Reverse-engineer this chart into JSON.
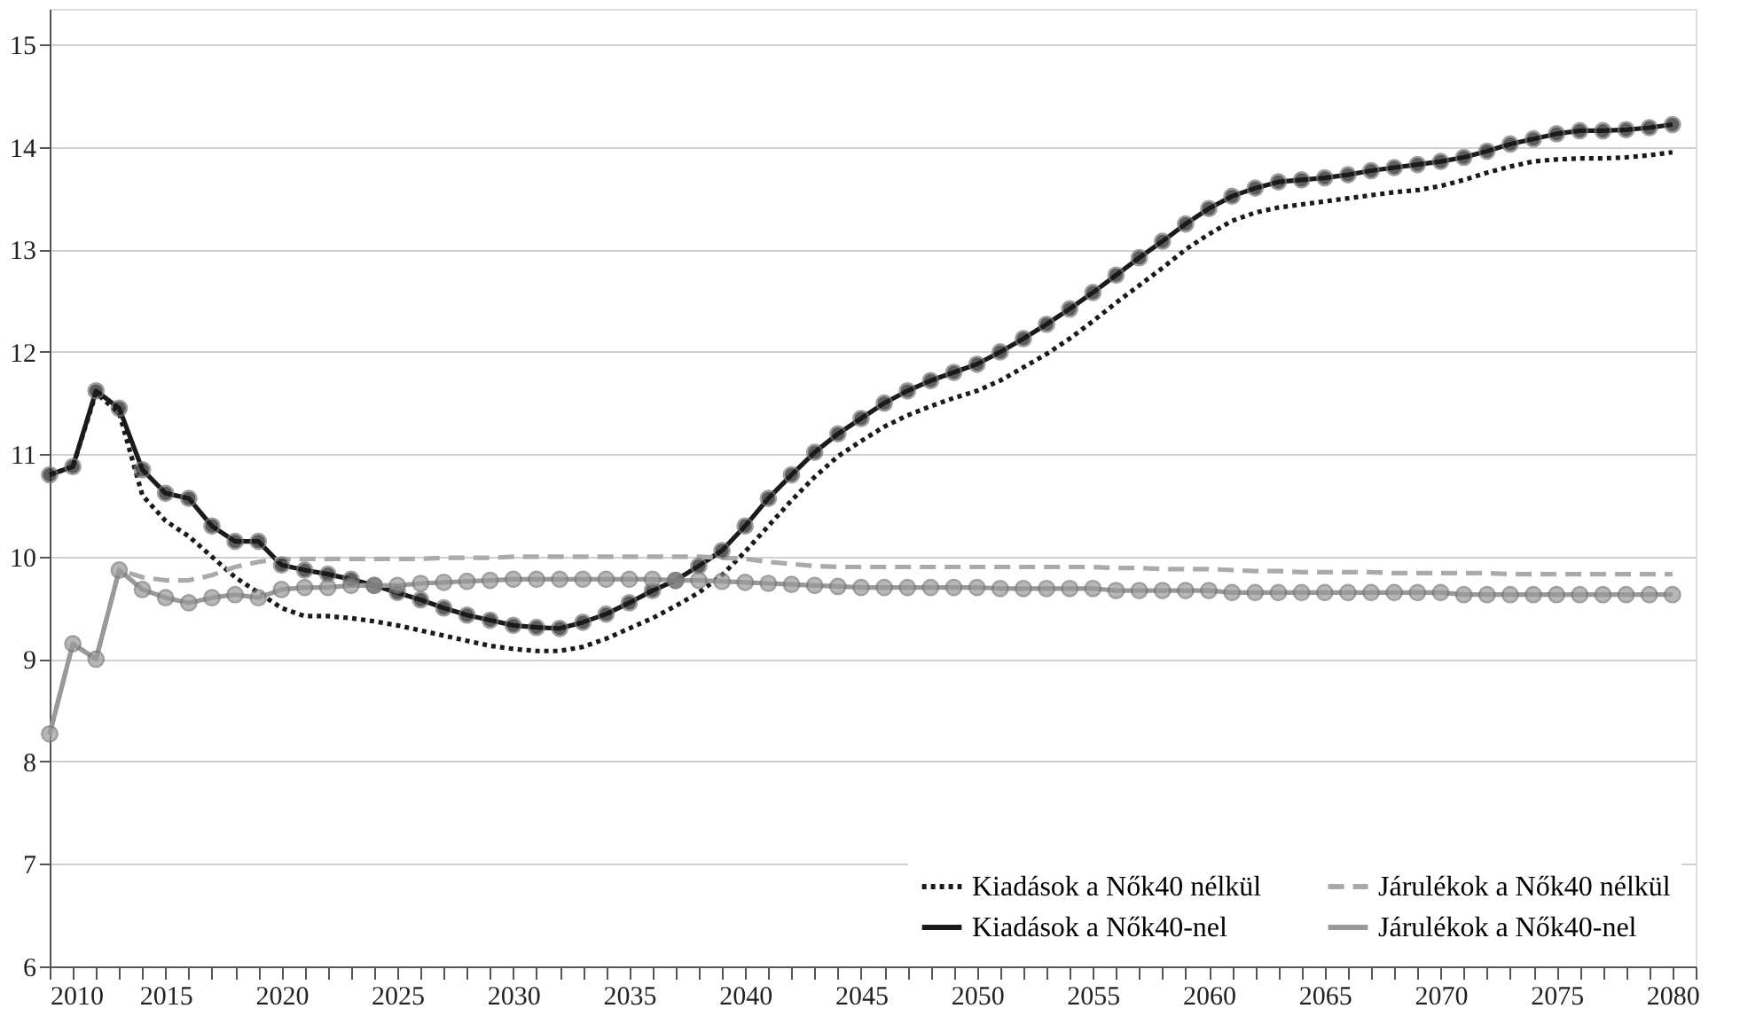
{
  "chart_data": {
    "type": "line",
    "x": [
      2010,
      2011,
      2012,
      2013,
      2014,
      2015,
      2016,
      2017,
      2018,
      2019,
      2020,
      2021,
      2022,
      2023,
      2024,
      2025,
      2026,
      2027,
      2028,
      2029,
      2030,
      2031,
      2032,
      2033,
      2034,
      2035,
      2036,
      2037,
      2038,
      2039,
      2040,
      2041,
      2042,
      2043,
      2044,
      2045,
      2046,
      2047,
      2048,
      2049,
      2050,
      2051,
      2052,
      2053,
      2054,
      2055,
      2056,
      2057,
      2058,
      2059,
      2060,
      2061,
      2062,
      2063,
      2064,
      2065,
      2066,
      2067,
      2068,
      2069,
      2070,
      2071,
      2072,
      2073,
      2074,
      2075,
      2076,
      2077,
      2078,
      2079,
      2080
    ],
    "series": [
      {
        "name": "Kiadások a Nők40 nélkül",
        "color": "#1a1a1a",
        "line_style": "dotted",
        "marker": "none",
        "values": [
          10.8,
          10.88,
          11.6,
          11.4,
          10.6,
          10.35,
          10.2,
          10.0,
          9.8,
          9.65,
          9.5,
          9.42,
          9.42,
          9.4,
          9.37,
          9.33,
          9.28,
          9.23,
          9.18,
          9.13,
          9.1,
          9.08,
          9.08,
          9.12,
          9.2,
          9.3,
          9.4,
          9.52,
          9.65,
          9.82,
          10.05,
          10.3,
          10.55,
          10.78,
          10.98,
          11.13,
          11.27,
          11.38,
          11.47,
          11.55,
          11.62,
          11.72,
          11.85,
          11.98,
          12.13,
          12.3,
          12.48,
          12.65,
          12.82,
          13.0,
          13.15,
          13.28,
          13.36,
          13.41,
          13.44,
          13.47,
          13.5,
          13.53,
          13.56,
          13.58,
          13.62,
          13.68,
          13.75,
          13.81,
          13.86,
          13.88,
          13.89,
          13.89,
          13.9,
          13.92,
          13.95
        ]
      },
      {
        "name": "Kiadások a Nők40-nel",
        "color": "#1a1a1a",
        "line_style": "solid",
        "marker": "circle",
        "values": [
          10.8,
          10.88,
          11.62,
          11.45,
          10.85,
          10.62,
          10.57,
          10.3,
          10.15,
          10.15,
          9.92,
          9.87,
          9.83,
          9.78,
          9.72,
          9.65,
          9.58,
          9.5,
          9.43,
          9.38,
          9.33,
          9.31,
          9.3,
          9.36,
          9.44,
          9.55,
          9.67,
          9.77,
          9.91,
          10.06,
          10.3,
          10.57,
          10.8,
          11.02,
          11.2,
          11.35,
          11.5,
          11.62,
          11.72,
          11.8,
          11.88,
          12.0,
          12.13,
          12.27,
          12.42,
          12.58,
          12.75,
          12.92,
          13.08,
          13.25,
          13.4,
          13.52,
          13.6,
          13.66,
          13.68,
          13.7,
          13.73,
          13.77,
          13.8,
          13.83,
          13.86,
          13.9,
          13.96,
          14.03,
          14.08,
          14.13,
          14.16,
          14.16,
          14.17,
          14.19,
          14.22
        ]
      },
      {
        "name": "Járulékok a Nők40 nélkül",
        "color": "#aaaaaa",
        "line_style": "dashed",
        "marker": "none",
        "values": [
          8.27,
          9.15,
          9.0,
          9.87,
          9.8,
          9.77,
          9.77,
          9.82,
          9.9,
          9.95,
          9.98,
          9.98,
          9.98,
          9.98,
          9.98,
          9.98,
          9.98,
          9.99,
          9.99,
          9.99,
          10.0,
          10.0,
          10.0,
          10.0,
          10.0,
          10.0,
          10.0,
          10.0,
          10.0,
          9.99,
          9.98,
          9.95,
          9.93,
          9.91,
          9.9,
          9.9,
          9.9,
          9.9,
          9.9,
          9.9,
          9.9,
          9.9,
          9.9,
          9.9,
          9.9,
          9.9,
          9.89,
          9.89,
          9.88,
          9.88,
          9.88,
          9.87,
          9.86,
          9.86,
          9.85,
          9.85,
          9.85,
          9.85,
          9.84,
          9.84,
          9.84,
          9.84,
          9.84,
          9.83,
          9.83,
          9.83,
          9.83,
          9.83,
          9.83,
          9.83,
          9.83
        ]
      },
      {
        "name": "Járulékok a Nők40-nel",
        "color": "#999999",
        "line_style": "solid",
        "marker": "circle",
        "values": [
          8.27,
          9.15,
          9.0,
          9.87,
          9.68,
          9.6,
          9.55,
          9.6,
          9.63,
          9.6,
          9.68,
          9.7,
          9.7,
          9.72,
          9.72,
          9.72,
          9.74,
          9.75,
          9.76,
          9.77,
          9.78,
          9.78,
          9.78,
          9.78,
          9.78,
          9.78,
          9.78,
          9.77,
          9.77,
          9.76,
          9.75,
          9.74,
          9.73,
          9.72,
          9.71,
          9.7,
          9.7,
          9.7,
          9.7,
          9.7,
          9.7,
          9.69,
          9.69,
          9.69,
          9.69,
          9.69,
          9.67,
          9.67,
          9.67,
          9.67,
          9.67,
          9.65,
          9.65,
          9.65,
          9.65,
          9.65,
          9.65,
          9.65,
          9.65,
          9.65,
          9.65,
          9.63,
          9.63,
          9.63,
          9.63,
          9.63,
          9.63,
          9.63,
          9.63,
          9.63,
          9.63
        ]
      }
    ],
    "xlim": [
      2010,
      2081
    ],
    "xticks": [
      2010,
      {
        "value": 2011,
        "label": null
      },
      {
        "value": 2012,
        "label": null
      },
      {
        "value": 2013,
        "label": null
      },
      {
        "value": 2014,
        "label": null
      },
      2015,
      {
        "value": 2016,
        "label": null
      },
      {
        "value": 2017,
        "label": null
      },
      {
        "value": 2018,
        "label": null
      },
      {
        "value": 2019,
        "label": null
      },
      2020,
      {
        "value": 2021,
        "label": null
      },
      {
        "value": 2022,
        "label": null
      },
      {
        "value": 2023,
        "label": null
      },
      {
        "value": 2024,
        "label": null
      },
      2025,
      {
        "value": 2026,
        "label": null
      },
      {
        "value": 2027,
        "label": null
      },
      {
        "value": 2028,
        "label": null
      },
      {
        "value": 2029,
        "label": null
      },
      2030,
      {
        "value": 2031,
        "label": null
      },
      {
        "value": 2032,
        "label": null
      },
      {
        "value": 2033,
        "label": null
      },
      {
        "value": 2034,
        "label": null
      },
      2035,
      {
        "value": 2036,
        "label": null
      },
      {
        "value": 2037,
        "label": null
      },
      {
        "value": 2038,
        "label": null
      },
      {
        "value": 2039,
        "label": null
      },
      2040,
      {
        "value": 2041,
        "label": null
      },
      {
        "value": 2042,
        "label": null
      },
      {
        "value": 2043,
        "label": null
      },
      {
        "value": 2044,
        "label": null
      },
      2045,
      {
        "value": 2046,
        "label": null
      },
      {
        "value": 2047,
        "label": null
      },
      {
        "value": 2048,
        "label": null
      },
      {
        "value": 2049,
        "label": null
      },
      2050,
      {
        "value": 2051,
        "label": null
      },
      {
        "value": 2052,
        "label": null
      },
      {
        "value": 2053,
        "label": null
      },
      {
        "value": 2054,
        "label": null
      },
      2055,
      {
        "value": 2056,
        "label": null
      },
      {
        "value": 2057,
        "label": null
      },
      {
        "value": 2058,
        "label": null
      },
      {
        "value": 2059,
        "label": null
      },
      2060,
      {
        "value": 2061,
        "label": null
      },
      {
        "value": 2062,
        "label": null
      },
      {
        "value": 2063,
        "label": null
      },
      {
        "value": 2064,
        "label": null
      },
      2065,
      {
        "value": 2066,
        "label": null
      },
      {
        "value": 2067,
        "label": null
      },
      {
        "value": 2068,
        "label": null
      },
      {
        "value": 2069,
        "label": null
      },
      2070,
      {
        "value": 2071,
        "label": null
      },
      {
        "value": 2072,
        "label": null
      },
      {
        "value": 2073,
        "label": null
      },
      {
        "value": 2074,
        "label": null
      },
      2075,
      {
        "value": 2076,
        "label": null
      },
      {
        "value": 2077,
        "label": null
      },
      {
        "value": 2078,
        "label": null
      },
      {
        "value": 2079,
        "label": null
      },
      2080,
      {
        "value": 2081,
        "label": null
      }
    ],
    "ylim": [
      6,
      15.35
    ],
    "yticks": [
      6,
      7,
      8,
      9,
      10,
      11,
      12,
      13,
      14,
      15
    ],
    "grid": "y",
    "legend": "bottom right"
  }
}
